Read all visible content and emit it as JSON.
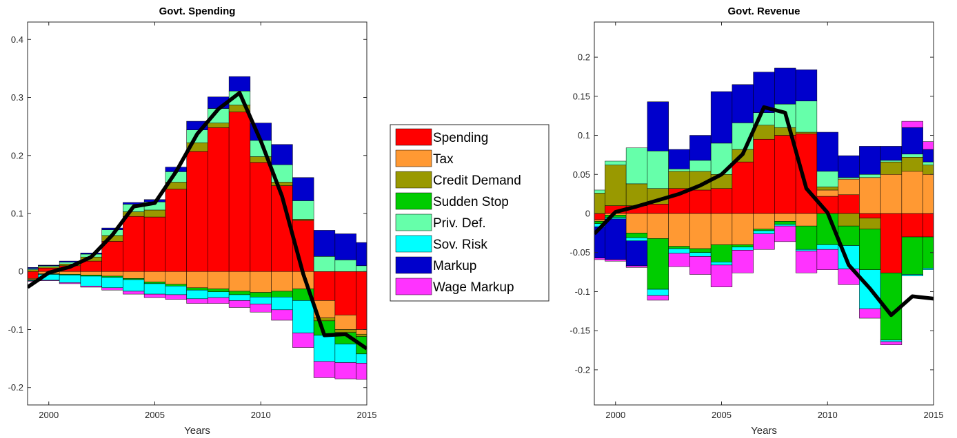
{
  "chart_data": [
    {
      "type": "bar",
      "stacked": true,
      "title": "Govt. Spending",
      "xlabel": "Years",
      "ylabel": "",
      "xlim": [
        1999,
        2015
      ],
      "ylim": [
        -0.23,
        0.43
      ],
      "xticks": [
        2000,
        2005,
        2010,
        2015
      ],
      "yticks": [
        -0.2,
        -0.1,
        0,
        0.1,
        0.2,
        0.3,
        0.4
      ],
      "ytick_labels": [
        "-0.2",
        "-0.1",
        "0",
        "0.1",
        "0.2",
        "0.3",
        "0.4"
      ],
      "grid": false,
      "x": [
        1999,
        2000,
        2001,
        2002,
        2003,
        2004,
        2005,
        2006,
        2007,
        2008,
        2009,
        2010,
        2011,
        2012,
        2013,
        2014,
        2015
      ],
      "series": [
        {
          "name": "Spending",
          "color": "#ff0000",
          "values": [
            -0.012,
            0.006,
            0.01,
            0.018,
            0.052,
            0.095,
            0.094,
            0.142,
            0.207,
            0.248,
            0.275,
            0.188,
            0.148,
            0.088,
            -0.05,
            -0.075,
            -0.1
          ]
        },
        {
          "name": "Tax",
          "color": "#ff9933",
          "values": [
            -0.002,
            -0.004,
            -0.005,
            -0.006,
            -0.008,
            -0.012,
            -0.018,
            -0.022,
            -0.028,
            -0.03,
            -0.034,
            -0.036,
            -0.034,
            -0.03,
            -0.03,
            -0.025,
            -0.008
          ]
        },
        {
          "name": "Credit Demand",
          "color": "#999900",
          "values": [
            0.003,
            0.002,
            0.003,
            0.007,
            0.01,
            0.008,
            0.012,
            0.012,
            0.015,
            0.008,
            0.012,
            0.01,
            0.006,
            0.002,
            -0.005,
            -0.005,
            -0.004
          ]
        },
        {
          "name": "Sudden Stop",
          "color": "#00cc00",
          "values": [
            -0.001,
            -0.001,
            -0.001,
            -0.002,
            -0.002,
            -0.002,
            -0.003,
            -0.003,
            -0.004,
            -0.005,
            -0.006,
            -0.008,
            -0.01,
            -0.02,
            -0.025,
            -0.02,
            -0.03
          ]
        },
        {
          "name": "Priv. Def.",
          "color": "#66ffaa",
          "values": [
            0.002,
            0.002,
            0.003,
            0.005,
            0.01,
            0.013,
            0.014,
            0.018,
            0.022,
            0.025,
            0.024,
            0.028,
            0.03,
            0.032,
            0.026,
            0.02,
            0.01
          ]
        },
        {
          "name": "Sov. Risk",
          "color": "#00ffff",
          "values": [
            -0.001,
            -0.01,
            -0.013,
            -0.017,
            -0.018,
            -0.02,
            -0.018,
            -0.015,
            -0.015,
            -0.01,
            -0.01,
            -0.012,
            -0.022,
            -0.056,
            -0.045,
            -0.032,
            -0.016
          ]
        },
        {
          "name": "Markup",
          "color": "#0000cc",
          "values": [
            0.002,
            0.001,
            0.002,
            0.002,
            0.003,
            0.003,
            0.004,
            0.008,
            0.015,
            0.02,
            0.025,
            0.03,
            0.035,
            0.04,
            0.045,
            0.045,
            0.04
          ]
        },
        {
          "name": "Wage Markup",
          "color": "#ff33ff",
          "values": [
            -0.001,
            -0.001,
            -0.002,
            -0.002,
            -0.004,
            -0.005,
            -0.006,
            -0.008,
            -0.008,
            -0.01,
            -0.012,
            -0.014,
            -0.018,
            -0.025,
            -0.028,
            -0.028,
            -0.028
          ]
        }
      ],
      "line": {
        "name": "",
        "color": "#000000",
        "values": [
          -0.027,
          -0.002,
          0.008,
          0.025,
          0.063,
          0.112,
          0.118,
          0.172,
          0.237,
          0.28,
          0.308,
          0.225,
          0.13,
          -0.004,
          -0.11,
          -0.108,
          -0.133
        ]
      }
    },
    {
      "type": "bar",
      "stacked": true,
      "title": "Govt. Revenue",
      "xlabel": "Years",
      "ylabel": "",
      "xlim": [
        1999,
        2015
      ],
      "ylim": [
        -0.245,
        0.245
      ],
      "xticks": [
        2000,
        2005,
        2010,
        2015
      ],
      "yticks": [
        -0.2,
        -0.15,
        -0.1,
        -0.05,
        0,
        0.05,
        0.1,
        0.15,
        0.2
      ],
      "ytick_labels": [
        "-0.2",
        "-0.15",
        "-0.1",
        "-0.05",
        "0",
        "0.05",
        "0.1",
        "0.15",
        "0.2"
      ],
      "grid": false,
      "x": [
        1999,
        2000,
        2001,
        2002,
        2003,
        2004,
        2005,
        2006,
        2007,
        2008,
        2009,
        2010,
        2011,
        2012,
        2013,
        2014,
        2015
      ],
      "series": [
        {
          "name": "Spending",
          "color": "#ff0000",
          "values": [
            -0.008,
            0.01,
            0.01,
            0.012,
            0.032,
            0.03,
            0.032,
            0.066,
            0.095,
            0.1,
            0.102,
            0.022,
            0.024,
            -0.006,
            -0.076,
            -0.03,
            -0.03
          ]
        },
        {
          "name": "Tax",
          "color": "#ff9933",
          "values": [
            -0.002,
            -0.002,
            -0.025,
            -0.032,
            -0.042,
            -0.045,
            -0.04,
            -0.04,
            -0.02,
            -0.01,
            -0.016,
            0.008,
            0.02,
            0.046,
            0.05,
            0.054,
            0.05
          ]
        },
        {
          "name": "Credit Demand",
          "color": "#999900",
          "values": [
            0.026,
            0.052,
            0.028,
            0.02,
            0.022,
            0.024,
            0.018,
            0.016,
            0.018,
            0.01,
            0.002,
            0.004,
            -0.016,
            -0.014,
            0.016,
            0.018,
            0.012
          ]
        },
        {
          "name": "Sudden Stop",
          "color": "#00cc00",
          "values": [
            -0.003,
            -0.003,
            -0.006,
            -0.065,
            -0.003,
            -0.005,
            -0.022,
            -0.003,
            -0.002,
            -0.004,
            -0.03,
            -0.04,
            -0.025,
            -0.052,
            -0.086,
            -0.048,
            -0.04
          ]
        },
        {
          "name": "Priv. Def.",
          "color": "#66ffaa",
          "values": [
            0.004,
            0.005,
            0.046,
            0.048,
            0.003,
            0.014,
            0.04,
            0.034,
            0.016,
            0.03,
            0.04,
            0.02,
            0.002,
            0.004,
            0.002,
            0.004,
            0.004
          ]
        },
        {
          "name": "Sov. Risk",
          "color": "#00ffff",
          "values": [
            -0.004,
            -0.002,
            -0.004,
            -0.008,
            -0.006,
            -0.005,
            -0.004,
            -0.004,
            -0.004,
            -0.002,
            -0.002,
            -0.006,
            -0.03,
            -0.05,
            -0.002,
            -0.002,
            -0.002
          ]
        },
        {
          "name": "Markup",
          "color": "#0000cc",
          "values": [
            -0.04,
            -0.052,
            -0.032,
            0.063,
            0.025,
            0.032,
            0.066,
            0.049,
            0.052,
            0.046,
            0.04,
            0.05,
            0.028,
            0.036,
            0.018,
            0.034,
            0.016
          ]
        },
        {
          "name": "Wage Markup",
          "color": "#ff33ff",
          "values": [
            -0.002,
            -0.002,
            -0.002,
            -0.006,
            -0.017,
            -0.023,
            -0.028,
            -0.029,
            -0.02,
            -0.02,
            -0.028,
            -0.026,
            -0.02,
            -0.012,
            -0.004,
            0.008,
            0.01
          ]
        }
      ],
      "line": {
        "name": "",
        "color": "#000000",
        "values": [
          -0.026,
          0.002,
          0.009,
          0.017,
          0.025,
          0.036,
          0.05,
          0.076,
          0.136,
          0.129,
          0.032,
          0.001,
          -0.066,
          -0.096,
          -0.13,
          -0.106,
          -0.109
        ]
      }
    }
  ],
  "legend": {
    "placement": "center",
    "items": [
      {
        "label": "Spending",
        "color": "#ff0000"
      },
      {
        "label": "Tax",
        "color": "#ff9933"
      },
      {
        "label": "Credit Demand",
        "color": "#999900"
      },
      {
        "label": "Sudden Stop",
        "color": "#00cc00"
      },
      {
        "label": "Priv. Def.",
        "color": "#66ffaa"
      },
      {
        "label": "Sov. Risk",
        "color": "#00ffff"
      },
      {
        "label": "Markup",
        "color": "#0000cc"
      },
      {
        "label": "Wage Markup",
        "color": "#ff33ff"
      }
    ]
  }
}
